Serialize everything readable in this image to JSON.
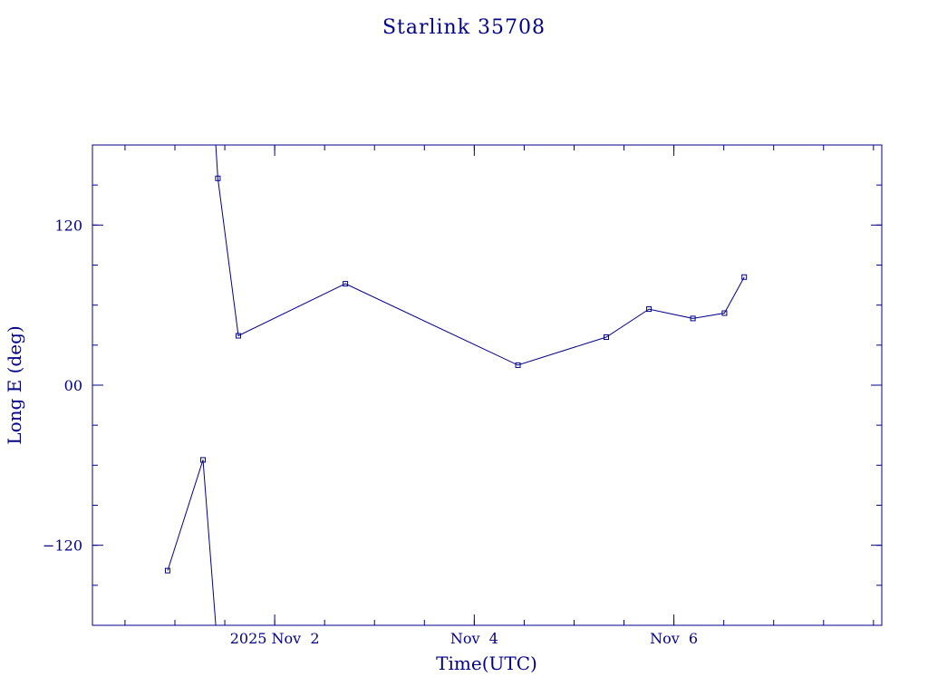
{
  "chart_data": {
    "type": "line",
    "title": "Starlink 35708",
    "xlabel": "Time(UTC)",
    "ylabel": "Long E (deg)",
    "xlim": [
      "2025-10-31T04:10",
      "2025-11-08T02:00"
    ],
    "ylim": [
      -180,
      180
    ],
    "x_ticks": [
      {
        "x": "2025-11-02T00:00",
        "label": "2025 Nov  2"
      },
      {
        "x": "2025-11-04T00:00",
        "label": "Nov  4"
      },
      {
        "x": "2025-11-06T00:00",
        "label": "Nov  6"
      }
    ],
    "y_ticks": [
      {
        "y": 120,
        "label": "120"
      },
      {
        "y": 0,
        "label": "00"
      },
      {
        "y": -120,
        "label": "−120"
      }
    ],
    "grid": false,
    "line_segments": [
      {
        "x": [
          "2025-10-31T22:15",
          "2025-11-01T06:45",
          "2025-11-01T09:50"
        ],
        "y": [
          -139,
          -56,
          -180
        ]
      },
      {
        "x": [
          "2025-11-01T09:50",
          "2025-11-01T10:20",
          "2025-11-01T15:15",
          "2025-11-02T17:00",
          "2025-11-04T10:30",
          "2025-11-05T07:45",
          "2025-11-05T18:00",
          "2025-11-06T04:35",
          "2025-11-06T12:10",
          "2025-11-06T16:55"
        ],
        "y": [
          180,
          155,
          37,
          76,
          15,
          36,
          57,
          50,
          54,
          81
        ]
      }
    ],
    "points": {
      "x": [
        "2025-10-31T22:15",
        "2025-11-01T06:45",
        "2025-11-01T10:20",
        "2025-11-01T15:15",
        "2025-11-02T17:00",
        "2025-11-04T10:30",
        "2025-11-05T07:45",
        "2025-11-05T18:00",
        "2025-11-06T04:35",
        "2025-11-06T12:10",
        "2025-11-06T16:55"
      ],
      "y": [
        -139,
        -56,
        155,
        37,
        76,
        15,
        36,
        57,
        50,
        54,
        81
      ]
    }
  }
}
